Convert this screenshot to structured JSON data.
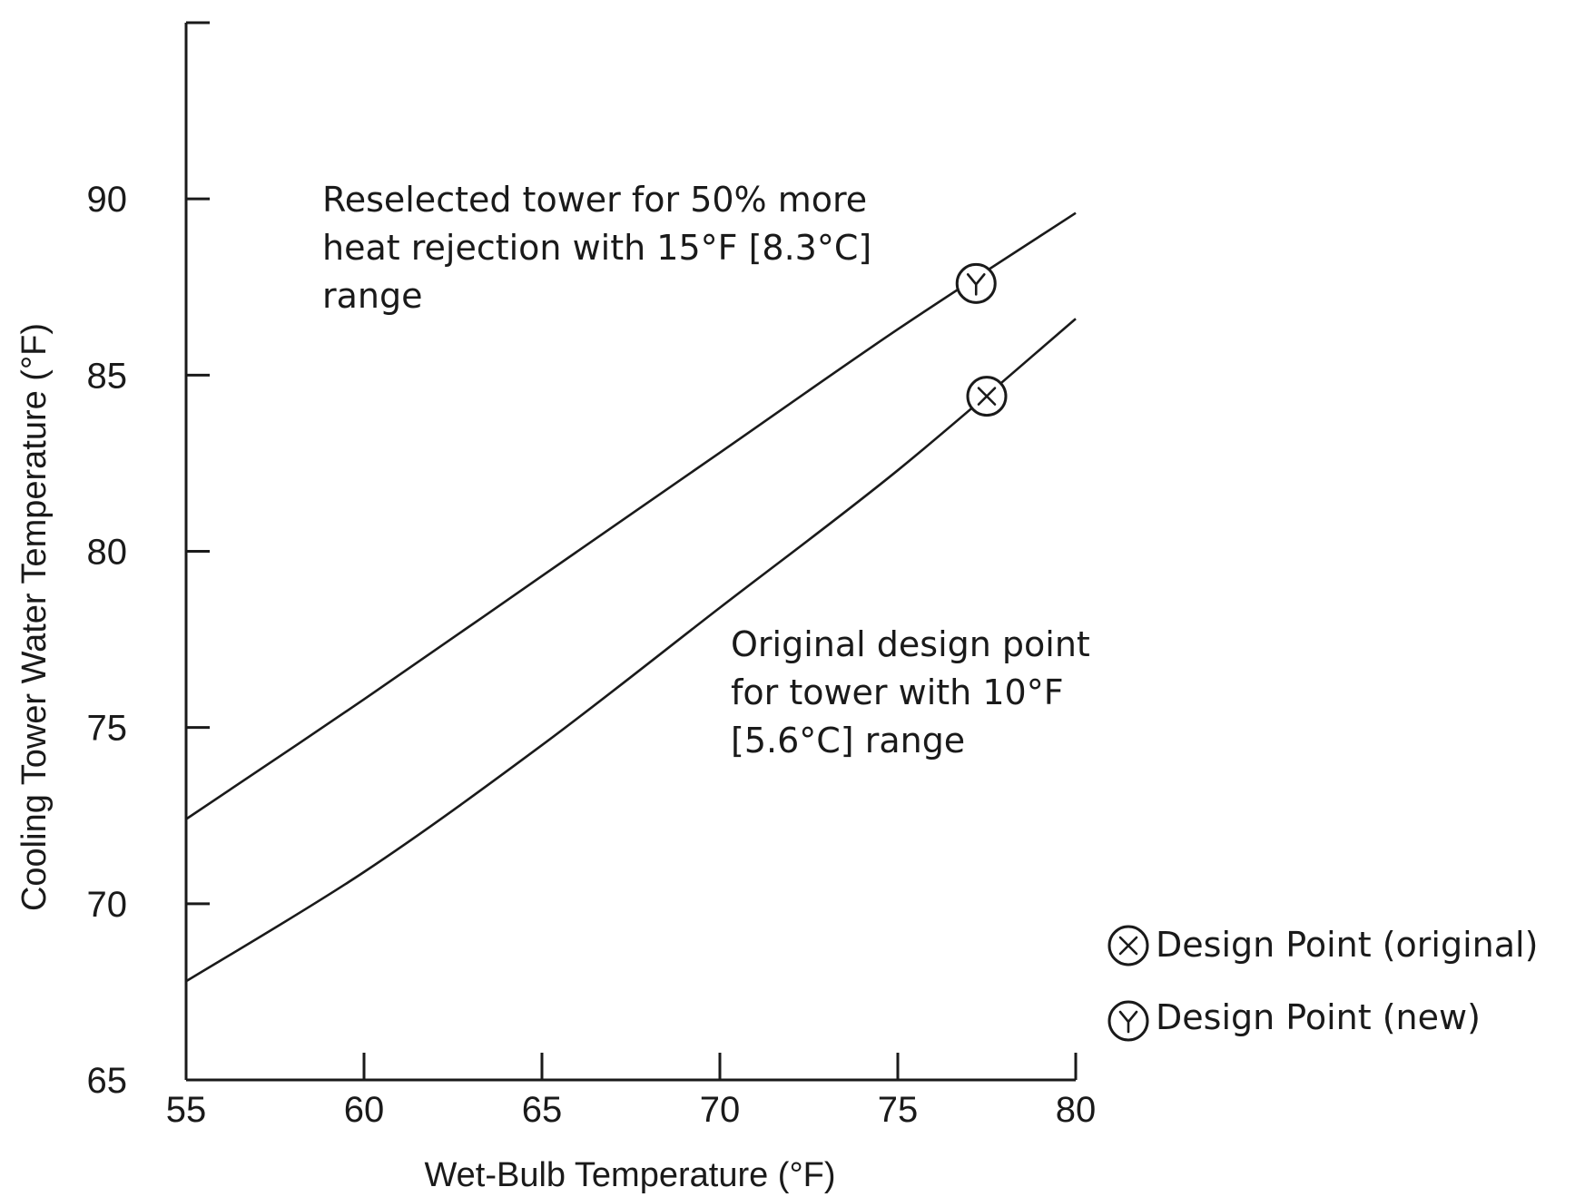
{
  "chart_data": {
    "type": "line",
    "xlabel": "Wet-Bulb Temperature (°F)",
    "ylabel": "Cooling Tower Water Temperature (°F)",
    "xlim": [
      55,
      80
    ],
    "ylim": [
      65,
      95
    ],
    "x_ticks": [
      55,
      60,
      65,
      70,
      75,
      80
    ],
    "y_ticks": [
      65,
      70,
      75,
      80,
      85,
      90
    ],
    "grid": false,
    "series": [
      {
        "id": "reselected",
        "x": [
          55,
          60,
          65,
          70,
          75,
          80
        ],
        "y": [
          72.4,
          75.8,
          79.3,
          82.8,
          86.3,
          89.6
        ]
      },
      {
        "id": "original",
        "x": [
          55,
          60,
          65,
          70,
          75,
          80
        ],
        "y": [
          67.8,
          70.9,
          74.5,
          78.4,
          82.3,
          86.6
        ]
      }
    ],
    "markers": [
      {
        "series": "reselected",
        "symbol": "Y",
        "x": 77.2,
        "y": 87.6
      },
      {
        "series": "original",
        "symbol": "X",
        "x": 77.5,
        "y": 84.4
      }
    ],
    "annotations": [
      {
        "id": "reselected_note",
        "lines": [
          "Reselected tower for 50% more",
          "heat rejection with 15°F [8.3°C]",
          "range"
        ]
      },
      {
        "id": "original_note",
        "lines": [
          "Original design point",
          "for tower with 10°F",
          "[5.6°C] range"
        ]
      }
    ],
    "legend": {
      "placement": "bottom-right",
      "entries": [
        {
          "symbol": "X",
          "label": "Design Point (original)"
        },
        {
          "symbol": "Y",
          "label": "Design Point (new)"
        }
      ]
    }
  }
}
